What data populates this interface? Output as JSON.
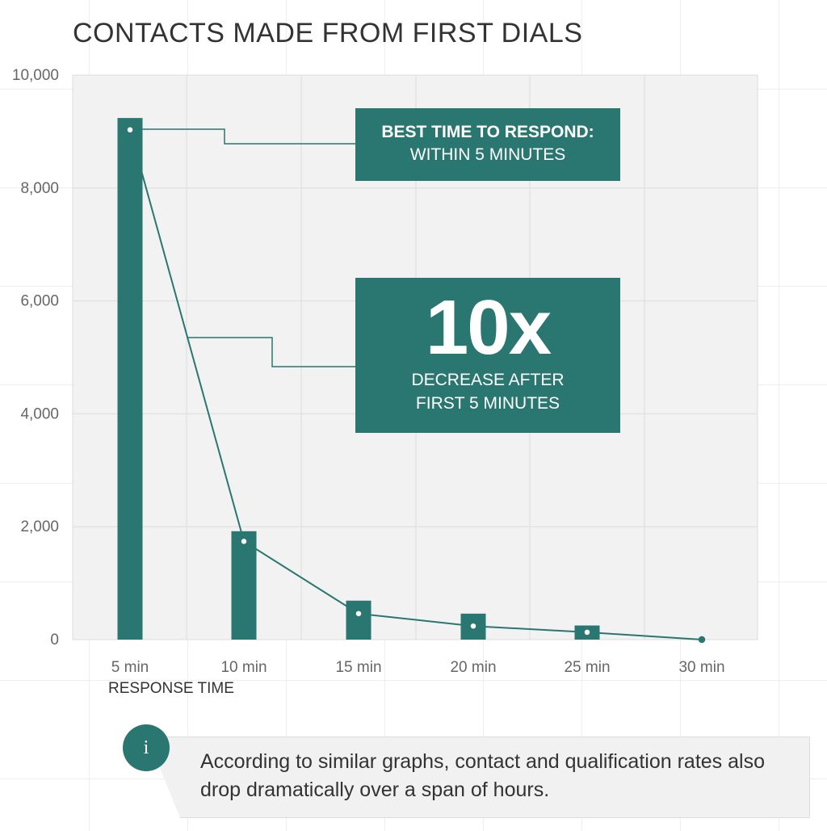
{
  "chart_data": {
    "type": "bar",
    "title": "CONTACTS MADE FROM FIRST DIALS",
    "xlabel": "RESPONSE TIME",
    "ylabel": "",
    "categories": [
      "5 min",
      "10 min",
      "15 min",
      "20 min",
      "25 min",
      "30 min"
    ],
    "series": [
      {
        "type": "bar",
        "values": [
          9240,
          1920,
          690,
          460,
          250,
          0
        ]
      },
      {
        "type": "line",
        "values": [
          9030,
          1740,
          460,
          240,
          130,
          0
        ]
      }
    ],
    "ylim": [
      0,
      10000
    ],
    "yticks": [
      0,
      2000,
      4000,
      6000,
      8000,
      10000
    ],
    "ytick_labels": [
      "0",
      "2,000",
      "4,000",
      "6,000",
      "8,000",
      "10,000"
    ],
    "grid": true,
    "annotations": {
      "best": {
        "line1": "BEST TIME TO RESPOND:",
        "line2": "WITHIN 5 MINUTES"
      },
      "decrease": {
        "big": "10x",
        "line1": "DECREASE AFTER",
        "line2": "FIRST 5 MINUTES"
      }
    },
    "colors": {
      "teal": "#2a7670",
      "plot_bg": "#f2f2f2",
      "grid": "#dcdcdc"
    }
  },
  "note": {
    "icon": "info-icon",
    "icon_glyph": "i",
    "text": "According to similar graphs, contact and qualification rates also drop dramatically over a span of hours."
  }
}
